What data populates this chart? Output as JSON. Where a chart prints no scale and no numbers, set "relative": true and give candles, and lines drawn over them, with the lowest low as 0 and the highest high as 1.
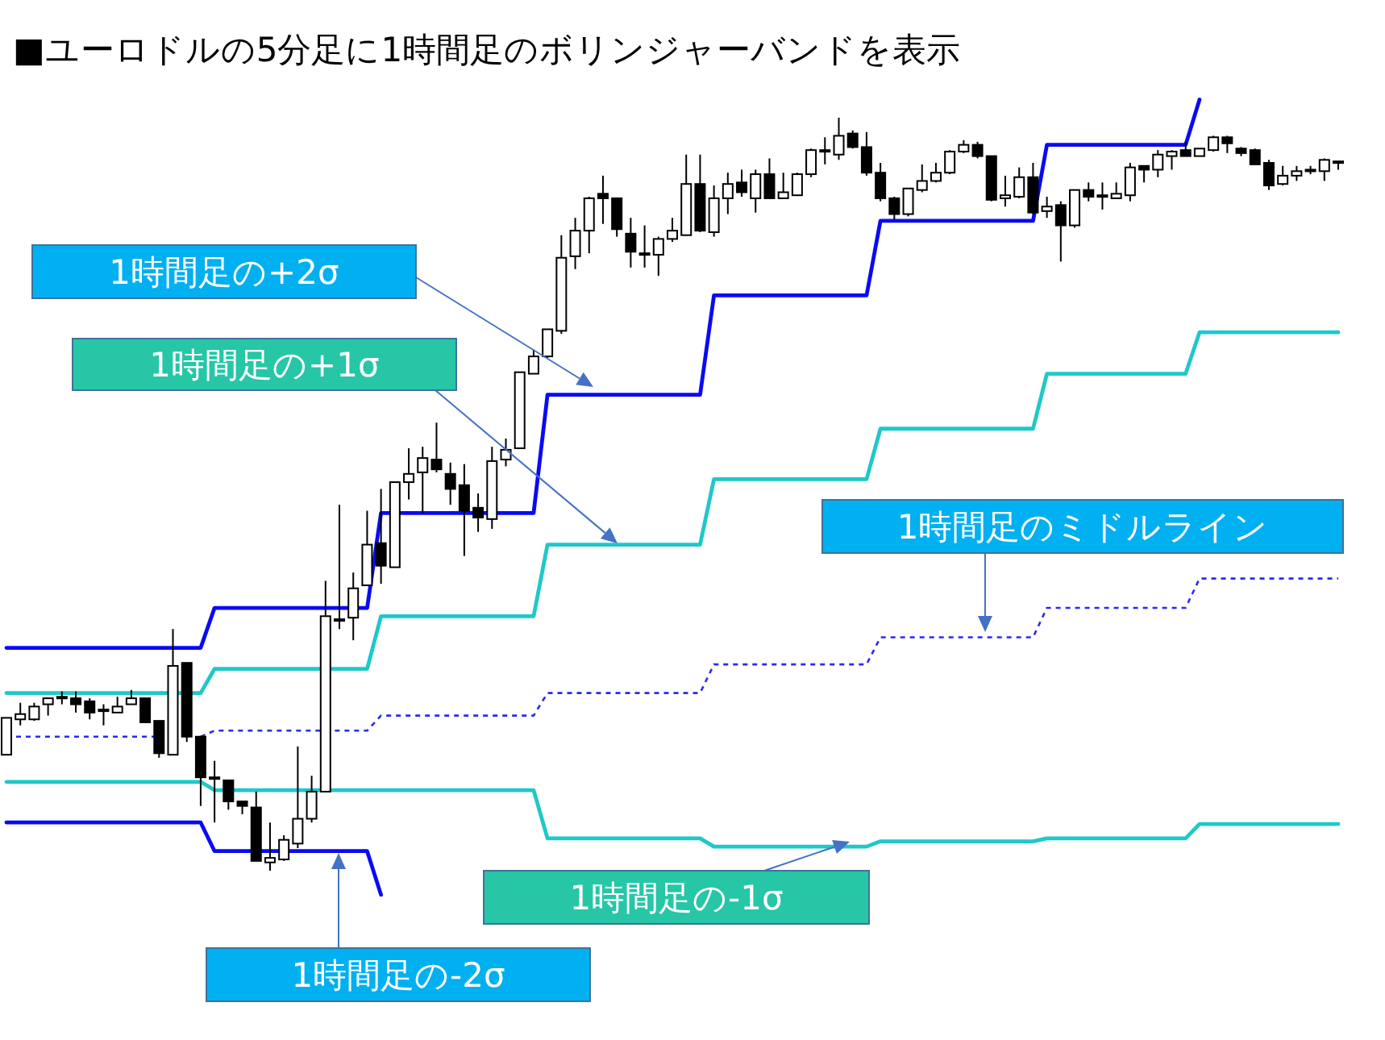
{
  "chart_data": {
    "type": "candlestick",
    "title": "■ユーロドルの5分足に1時間足のボリンジャーバンドを表示",
    "relative": true,
    "annotations": [
      "1時間足の+2σ",
      "1時間足の+1σ",
      "1時間足のミドルライン",
      "1時間足の-1σ",
      "1時間足の-2σ"
    ],
    "categories": [
      null,
      null,
      null,
      null,
      null,
      null,
      null,
      null,
      null,
      null,
      null,
      null,
      null,
      null,
      null,
      null,
      null,
      null,
      null,
      null,
      null,
      null,
      null,
      null,
      null,
      null,
      null,
      null,
      null,
      null,
      null,
      null,
      null,
      null,
      null,
      null,
      null,
      null,
      null,
      null,
      null,
      null,
      null,
      null,
      null,
      null,
      null,
      null,
      null,
      null,
      null,
      null,
      null,
      null,
      null,
      null,
      null,
      null,
      null,
      null,
      null,
      null,
      null,
      null,
      null,
      null,
      null,
      null,
      null,
      null,
      null,
      null,
      null,
      null,
      null,
      null,
      null,
      null,
      null,
      null,
      null,
      null,
      null,
      null,
      null,
      null,
      null,
      null,
      null,
      null,
      null,
      null,
      null,
      null,
      null,
      null,
      null
    ],
    "ohlc": [
      [
        0.154,
        0.203,
        0.154,
        0.203
      ],
      [
        0.201,
        0.223,
        0.193,
        0.208
      ],
      [
        0.201,
        0.223,
        0.199,
        0.218
      ],
      [
        0.221,
        0.229,
        0.206,
        0.229
      ],
      [
        0.229,
        0.238,
        0.221,
        0.231
      ],
      [
        0.229,
        0.238,
        0.21,
        0.221
      ],
      [
        0.225,
        0.229,
        0.201,
        0.21
      ],
      [
        0.212,
        0.221,
        0.193,
        0.214
      ],
      [
        0.21,
        0.231,
        0.21,
        0.218
      ],
      [
        0.221,
        0.24,
        0.221,
        0.229
      ],
      [
        0.229,
        0.229,
        0.197,
        0.197
      ],
      [
        0.199,
        0.199,
        0.15,
        0.156
      ],
      [
        0.154,
        0.321,
        0.154,
        0.272
      ],
      [
        0.276,
        0.276,
        0.171,
        0.178
      ],
      [
        0.178,
        0.178,
        0.086,
        0.124
      ],
      [
        0.122,
        0.146,
        0.064,
        0.124
      ],
      [
        0.12,
        0.12,
        0.081,
        0.092
      ],
      [
        0.092,
        0.092,
        0.075,
        0.086
      ],
      [
        0.084,
        0.105,
        0.013,
        0.013
      ],
      [
        0.011,
        0.064,
        0,
        0.017
      ],
      [
        0.015,
        0.047,
        0.013,
        0.041
      ],
      [
        0.036,
        0.165,
        0.03,
        0.069
      ],
      [
        0.069,
        0.126,
        0.064,
        0.105
      ],
      [
        0.105,
        0.385,
        0.105,
        0.338
      ],
      [
        0.332,
        0.486,
        0.321,
        0.334
      ],
      [
        0.336,
        0.396,
        0.306,
        0.375
      ],
      [
        0.379,
        0.478,
        0.379,
        0.433
      ],
      [
        0.435,
        0.507,
        0.381,
        0.405
      ],
      [
        0.403,
        0.516,
        0.403,
        0.516
      ],
      [
        0.516,
        0.561,
        0.493,
        0.527
      ],
      [
        0.529,
        0.563,
        0.475,
        0.548
      ],
      [
        0.546,
        0.595,
        0.529,
        0.533
      ],
      [
        0.527,
        0.542,
        0.486,
        0.507
      ],
      [
        0.512,
        0.54,
        0.418,
        0.478
      ],
      [
        0.482,
        0.501,
        0.45,
        0.469
      ],
      [
        0.467,
        0.563,
        0.454,
        0.544
      ],
      [
        0.546,
        0.574,
        0.537,
        0.559
      ],
      [
        0.561,
        0.662,
        0.561,
        0.662
      ],
      [
        0.66,
        0.692,
        0.66,
        0.683
      ],
      [
        0.683,
        0.719,
        0.681,
        0.719
      ],
      [
        0.717,
        0.844,
        0.713,
        0.814
      ],
      [
        0.816,
        0.867,
        0.799,
        0.85
      ],
      [
        0.85,
        0.895,
        0.82,
        0.893
      ],
      [
        0.899,
        0.923,
        0.859,
        0.893
      ],
      [
        0.893,
        0.893,
        0.842,
        0.852
      ],
      [
        0.846,
        0.867,
        0.801,
        0.822
      ],
      [
        0.818,
        0.857,
        0.801,
        0.82
      ],
      [
        0.818,
        0.842,
        0.79,
        0.839
      ],
      [
        0.839,
        0.867,
        0.835,
        0.85
      ],
      [
        0.844,
        0.951,
        0.844,
        0.912
      ],
      [
        0.912,
        0.951,
        0.848,
        0.85
      ],
      [
        0.848,
        0.91,
        0.842,
        0.893
      ],
      [
        0.893,
        0.927,
        0.872,
        0.912
      ],
      [
        0.914,
        0.931,
        0.895,
        0.901
      ],
      [
        0.893,
        0.931,
        0.874,
        0.925
      ],
      [
        0.925,
        0.946,
        0.893,
        0.893
      ],
      [
        0.893,
        0.927,
        0.893,
        0.901
      ],
      [
        0.897,
        0.927,
        0.897,
        0.925
      ],
      [
        0.925,
        0.959,
        0.921,
        0.957
      ],
      [
        0.955,
        0.974,
        0.938,
        0.957
      ],
      [
        0.951,
        1,
        0.944,
        0.976
      ],
      [
        0.979,
        0.983,
        0.959,
        0.961
      ],
      [
        0.961,
        0.981,
        0.923,
        0.927
      ],
      [
        0.927,
        0.94,
        0.889,
        0.893
      ],
      [
        0.893,
        0.895,
        0.865,
        0.872
      ],
      [
        0.872,
        0.906,
        0.869,
        0.906
      ],
      [
        0.904,
        0.938,
        0.901,
        0.916
      ],
      [
        0.916,
        0.94,
        0.914,
        0.927
      ],
      [
        0.927,
        0.957,
        0.925,
        0.955
      ],
      [
        0.955,
        0.97,
        0.953,
        0.964
      ],
      [
        0.964,
        0.968,
        0.946,
        0.949
      ],
      [
        0.949,
        0.949,
        0.889,
        0.891
      ],
      [
        0.893,
        0.923,
        0.882,
        0.897
      ],
      [
        0.895,
        0.934,
        0.893,
        0.921
      ],
      [
        0.921,
        0.94,
        0.872,
        0.874
      ],
      [
        0.876,
        0.895,
        0.867,
        0.882
      ],
      [
        0.884,
        0.889,
        0.809,
        0.857
      ],
      [
        0.857,
        0.904,
        0.854,
        0.904
      ],
      [
        0.904,
        0.914,
        0.889,
        0.895
      ],
      [
        0.895,
        0.914,
        0.878,
        0.897
      ],
      [
        0.893,
        0.914,
        0.893,
        0.899
      ],
      [
        0.897,
        0.94,
        0.889,
        0.934
      ],
      [
        0.936,
        0.936,
        0.914,
        0.931
      ],
      [
        0.931,
        0.957,
        0.921,
        0.951
      ],
      [
        0.949,
        0.957,
        0.931,
        0.955
      ],
      [
        0.957,
        0.968,
        0.949,
        0.949
      ],
      [
        0.949,
        0.959,
        0.949,
        0.959
      ],
      [
        0.957,
        0.976,
        0.955,
        0.974
      ],
      [
        0.974,
        0.976,
        0.953,
        0.966
      ],
      [
        0.959,
        0.961,
        0.949,
        0.953
      ],
      [
        0.957,
        0.959,
        0.938,
        0.938
      ],
      [
        0.94,
        0.944,
        0.904,
        0.91
      ],
      [
        0.912,
        0.936,
        0.91,
        0.923
      ],
      [
        0.923,
        0.936,
        0.916,
        0.929
      ],
      [
        0.929,
        0.936,
        0.925,
        0.931
      ],
      [
        0.929,
        0.946,
        0.916,
        0.944
      ],
      [
        0.942,
        0.942,
        0.931,
        0.942
      ]
    ],
    "series": [
      {
        "type": "line",
        "color": "#0a0af5",
        "values": [
          0.296,
          0.296,
          0.296,
          0.296,
          0.296,
          0.296,
          0.296,
          0.296,
          0.296,
          0.296,
          0.296,
          0.296,
          0.296,
          0.296,
          0.296,
          0.349,
          0.349,
          0.349,
          0.349,
          0.349,
          0.349,
          0.349,
          0.349,
          0.349,
          0.349,
          0.349,
          0.349,
          0.475,
          0.475,
          0.475,
          0.475,
          0.475,
          0.475,
          0.475,
          0.475,
          0.475,
          0.475,
          0.475,
          0.475,
          0.632,
          0.632,
          0.632,
          0.632,
          0.632,
          0.632,
          0.632,
          0.632,
          0.632,
          0.632,
          0.632,
          0.632,
          0.764,
          0.764,
          0.764,
          0.764,
          0.764,
          0.764,
          0.764,
          0.764,
          0.764,
          0.764,
          0.764,
          0.764,
          0.863,
          0.863,
          0.863,
          0.863,
          0.863,
          0.863,
          0.863,
          0.863,
          0.863,
          0.863,
          0.863,
          0.863,
          0.964,
          0.964,
          0.964,
          0.964,
          0.964,
          0.964,
          0.964,
          0.964,
          0.964,
          0.964,
          0.964,
          1.024,
          null,
          null,
          null,
          null,
          null,
          null,
          null,
          null,
          null,
          null
        ]
      },
      {
        "type": "line",
        "color": "#1fc8c8",
        "values": [
          0.236,
          0.236,
          0.236,
          0.236,
          0.236,
          0.236,
          0.236,
          0.236,
          0.236,
          0.236,
          0.236,
          0.236,
          0.236,
          0.236,
          0.236,
          0.268,
          0.268,
          0.268,
          0.268,
          0.268,
          0.268,
          0.268,
          0.268,
          0.268,
          0.268,
          0.268,
          0.268,
          0.338,
          0.338,
          0.338,
          0.338,
          0.338,
          0.338,
          0.338,
          0.338,
          0.338,
          0.338,
          0.338,
          0.338,
          0.433,
          0.433,
          0.433,
          0.433,
          0.433,
          0.433,
          0.433,
          0.433,
          0.433,
          0.433,
          0.433,
          0.433,
          0.52,
          0.52,
          0.52,
          0.52,
          0.52,
          0.52,
          0.52,
          0.52,
          0.52,
          0.52,
          0.52,
          0.52,
          0.587,
          0.587,
          0.587,
          0.587,
          0.587,
          0.587,
          0.587,
          0.587,
          0.587,
          0.587,
          0.587,
          0.587,
          0.66,
          0.66,
          0.66,
          0.66,
          0.66,
          0.66,
          0.66,
          0.66,
          0.66,
          0.66,
          0.66,
          0.715,
          0.715,
          0.715,
          0.715,
          0.715,
          0.715,
          0.715,
          0.715,
          0.715,
          0.715,
          0.715
        ]
      },
      {
        "type": "line",
        "line_style": "dotted",
        "color": "#2a2af0",
        "values": [
          0.178,
          0.178,
          0.178,
          0.178,
          0.178,
          0.178,
          0.178,
          0.178,
          0.178,
          0.178,
          0.178,
          0.178,
          null,
          null,
          0.178,
          0.186,
          0.186,
          0.186,
          0.186,
          0.186,
          0.186,
          0.186,
          0.186,
          0.186,
          0.186,
          0.186,
          0.186,
          0.206,
          0.206,
          0.206,
          0.206,
          0.206,
          0.206,
          0.206,
          0.206,
          0.206,
          0.206,
          0.206,
          0.206,
          0.236,
          0.236,
          0.236,
          0.236,
          0.236,
          0.236,
          0.236,
          0.236,
          0.236,
          0.236,
          0.236,
          0.236,
          0.274,
          0.274,
          0.274,
          0.274,
          0.274,
          0.274,
          0.274,
          0.274,
          0.274,
          0.274,
          0.274,
          0.274,
          0.31,
          0.31,
          0.31,
          0.31,
          0.31,
          0.31,
          0.31,
          0.31,
          0.31,
          0.31,
          0.31,
          0.31,
          0.349,
          0.349,
          0.349,
          0.349,
          0.349,
          0.349,
          0.349,
          0.349,
          0.349,
          0.349,
          0.349,
          0.388,
          0.388,
          0.388,
          0.388,
          0.388,
          0.388,
          0.388,
          0.388,
          0.388,
          0.388,
          0.388
        ]
      },
      {
        "type": "line",
        "color": "#1fc8c8",
        "values": [
          0.118,
          0.118,
          0.118,
          0.118,
          0.118,
          0.118,
          0.118,
          0.118,
          0.118,
          0.118,
          0.118,
          0.118,
          0.118,
          0.118,
          0.118,
          0.107,
          0.107,
          0.107,
          0.107,
          0.107,
          0.107,
          0.107,
          0.107,
          0.107,
          0.107,
          0.107,
          0.107,
          0.107,
          0.107,
          0.107,
          0.107,
          0.107,
          0.107,
          0.107,
          0.107,
          0.107,
          0.107,
          0.107,
          0.107,
          0.043,
          0.043,
          0.043,
          0.043,
          0.043,
          0.043,
          0.043,
          0.043,
          0.043,
          0.043,
          0.043,
          0.043,
          0.032,
          0.032,
          0.032,
          0.032,
          0.032,
          0.032,
          0.032,
          0.032,
          0.032,
          0.032,
          0.032,
          0.032,
          0.039,
          0.039,
          0.039,
          0.039,
          0.039,
          0.039,
          0.039,
          0.039,
          0.039,
          0.039,
          0.039,
          0.039,
          0.043,
          0.043,
          0.043,
          0.043,
          0.043,
          0.043,
          0.043,
          0.043,
          0.043,
          0.043,
          0.043,
          0.062,
          0.062,
          0.062,
          0.062,
          0.062,
          0.062,
          0.062,
          0.062,
          0.062,
          0.062,
          0.062
        ]
      },
      {
        "type": "line",
        "color": "#0a0af5",
        "values": [
          0.064,
          0.064,
          0.064,
          0.064,
          0.064,
          0.064,
          0.064,
          0.064,
          0.064,
          0.064,
          0.064,
          0.064,
          0.064,
          0.064,
          0.064,
          0.026,
          0.026,
          0.026,
          0.026,
          0.026,
          0.026,
          0.026,
          0.026,
          0.026,
          0.026,
          0.026,
          0.026,
          -0.032,
          null,
          null,
          null,
          null,
          null,
          null,
          null,
          null,
          null,
          null,
          null,
          null,
          null,
          null,
          null,
          null,
          null,
          null,
          null,
          null,
          null,
          null,
          null,
          null,
          null,
          null,
          null,
          null,
          null,
          null,
          null,
          null,
          null,
          null,
          null,
          null,
          null,
          null,
          null,
          null,
          null,
          null,
          null,
          null,
          null,
          null,
          null,
          null,
          null,
          null,
          null,
          null,
          null,
          null,
          null,
          null,
          null,
          null,
          null,
          null,
          null,
          null,
          null,
          null,
          null,
          null,
          null,
          null,
          null
        ]
      }
    ]
  }
}
